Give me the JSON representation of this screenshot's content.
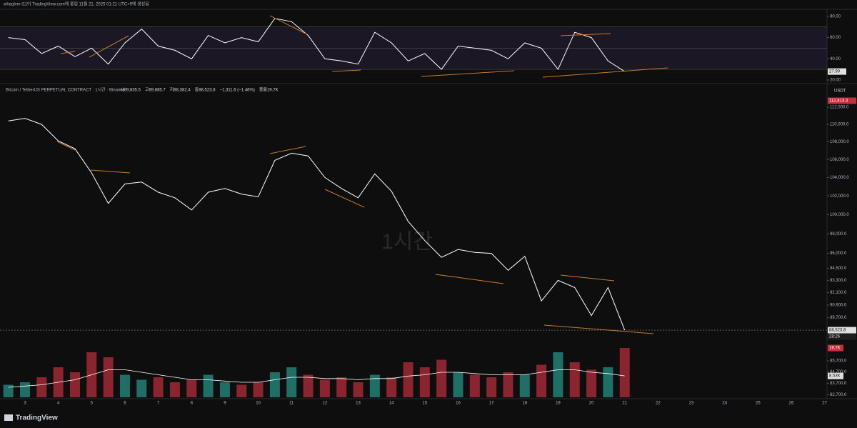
{
  "header": "whaqlvm l11이 TradingView.com에 올림 11월 21, 2025 01:21 UTC+9에 생성됨",
  "watermark": "1시간",
  "brand": "TradingView",
  "chart_data": [
    {
      "type": "line",
      "pane": "price",
      "legend": [
        "시89,835.5",
        "고89,885.7",
        "저88,382.4",
        "종88,523.8",
        "−1,311.6 (−1.46%)",
        "볼륨19.7K"
      ],
      "currency": "USDT",
      "log_scale": true,
      "x": [
        2.5,
        3,
        3.5,
        4,
        4.5,
        5,
        5.5,
        6,
        6.5,
        7,
        7.5,
        8,
        8.5,
        9,
        9.5,
        10,
        10.5,
        11,
        11.5,
        12,
        12.5,
        13,
        13.5,
        14,
        14.5,
        15,
        15.5,
        16,
        16.5,
        17,
        17.5,
        18,
        18.5,
        19,
        19.5,
        20,
        20.5,
        21
      ],
      "series": [
        {
          "name": "Bitcoin / TetherUS PERPETUAL CONTRACT · 1시간 · Binance",
          "color": "#ffffff",
          "values": [
            110400,
            110700,
            110000,
            108100,
            107200,
            104500,
            101200,
            103300,
            103500,
            102400,
            101800,
            100500,
            102400,
            102800,
            102200,
            101900,
            105900,
            106700,
            106400,
            104000,
            102800,
            101800,
            104400,
            102500,
            99300,
            97300,
            95600,
            96400,
            96100,
            96000,
            94300,
            95700,
            91300,
            93300,
            92600,
            89900,
            92600,
            88523.8
          ]
        }
      ],
      "last_price_label": "88,523.8",
      "countdown": "28:26",
      "high_label": "112,813.3",
      "xlim": [
        2.4,
        27.05
      ],
      "xticks": [
        3,
        4,
        5,
        6,
        7,
        8,
        9,
        10,
        11,
        12,
        13,
        14,
        15,
        16,
        17,
        18,
        19,
        20,
        21,
        22,
        23,
        24,
        25,
        26,
        27
      ],
      "ylim": [
        82470,
        114750
      ],
      "yticks": [
        {
          "value": 112000,
          "label": "112,000.0"
        },
        {
          "value": 110000,
          "label": "110,000.0"
        },
        {
          "value": 108000,
          "label": "108,000.0"
        },
        {
          "value": 106000,
          "label": "106,000.0"
        },
        {
          "value": 104000,
          "label": "104,000.0"
        },
        {
          "value": 102000,
          "label": "102,000.0"
        },
        {
          "value": 100000,
          "label": "100,000.0"
        },
        {
          "value": 98000,
          "label": "98,000.0"
        },
        {
          "value": 96000,
          "label": "96,000.0"
        },
        {
          "value": 94500,
          "label": "94,500.0"
        },
        {
          "value": 93300,
          "label": "93,300.0"
        },
        {
          "value": 92100,
          "label": "92,100.0"
        },
        {
          "value": 90900,
          "label": "90,900.0"
        },
        {
          "value": 89700,
          "label": "89,700.0"
        },
        {
          "value": 85700,
          "label": "85,700.0"
        },
        {
          "value": 84700,
          "label": "84,700.0"
        },
        {
          "value": 83700,
          "label": "83,700.0"
        },
        {
          "value": 82700,
          "label": "82,700.0"
        }
      ]
    },
    {
      "type": "line",
      "pane": "rsi",
      "x": [
        2.5,
        3,
        3.5,
        4,
        4.5,
        5,
        5.5,
        6,
        6.5,
        7,
        7.5,
        8,
        8.5,
        9,
        9.5,
        10,
        10.5,
        11,
        11.5,
        12,
        12.5,
        13,
        13.5,
        14,
        14.5,
        15,
        15.5,
        16,
        16.5,
        17,
        17.5,
        18,
        18.5,
        19,
        19.5,
        20,
        20.5,
        21
      ],
      "series": [
        {
          "color": "#ffffff",
          "values": [
            60,
            58,
            45,
            52,
            42,
            50,
            35,
            55,
            68,
            52,
            48,
            40,
            62,
            55,
            60,
            56,
            78,
            75,
            62,
            40,
            38,
            35,
            65,
            55,
            38,
            45,
            30,
            52,
            50,
            48,
            40,
            55,
            50,
            30,
            65,
            60,
            38,
            27.99
          ]
        }
      ],
      "band_color": "#7e57c2",
      "hlines": [
        30,
        50,
        70
      ],
      "ylim": [
        17.3,
        85.3
      ],
      "yticks": [
        {
          "value": 20,
          "label": "20.00"
        },
        {
          "value": 40,
          "label": "40.00"
        },
        {
          "value": 60,
          "label": "60.00"
        },
        {
          "value": 80,
          "label": "80.00"
        }
      ]
    },
    {
      "type": "bar",
      "pane": "volume",
      "x": [
        2.5,
        3,
        3.5,
        4,
        4.5,
        5,
        5.5,
        6,
        6.5,
        7,
        7.5,
        8,
        8.5,
        9,
        9.5,
        10,
        10.5,
        11,
        11.5,
        12,
        12.5,
        13,
        13.5,
        14,
        14.5,
        15,
        15.5,
        16,
        16.5,
        17,
        17.5,
        18,
        18.5,
        19,
        19.5,
        20,
        20.5,
        21
      ],
      "values": [
        5,
        6,
        8,
        12,
        10,
        18,
        16,
        9,
        7,
        8,
        6,
        7,
        9,
        6,
        5,
        6,
        10,
        12,
        9,
        7,
        8,
        6,
        9,
        8,
        14,
        12,
        15,
        10,
        9,
        8,
        10,
        9,
        13,
        18,
        14,
        11,
        12,
        19.7
      ],
      "value_labels": [
        null,
        null,
        null,
        null,
        null,
        null,
        null,
        null,
        null,
        null,
        null,
        null,
        null,
        null,
        null,
        null,
        null,
        null,
        null,
        null,
        null,
        null,
        null,
        null,
        null,
        null,
        null,
        null,
        null,
        null,
        null,
        null,
        null,
        null,
        null,
        null,
        null,
        "19.7K"
      ],
      "up_color": "#1e6f66",
      "down_color": "#8a2530",
      "ma": {
        "color": "#ffffff",
        "values": [
          4,
          4.5,
          5,
          6,
          7,
          9,
          11,
          11,
          10,
          9,
          8,
          7,
          7,
          6.5,
          6,
          6,
          7,
          8,
          8,
          7.5,
          7.5,
          7,
          7.5,
          7.5,
          8.5,
          9,
          10,
          10,
          9.5,
          9,
          9,
          9,
          10,
          11,
          11,
          10,
          9.5,
          8.53
        ],
        "last_label": "8.53K"
      },
      "ylim": [
        0,
        32
      ]
    }
  ]
}
